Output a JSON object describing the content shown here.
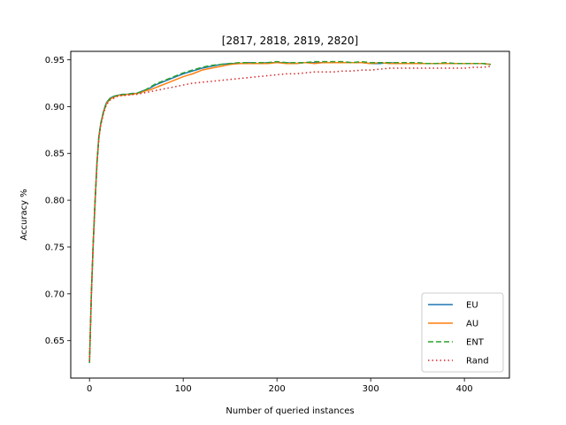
{
  "chart_data": {
    "type": "line",
    "title": "[2817, 2818, 2819, 2820]",
    "xlabel": "Number of queried instances",
    "ylabel": "Accuracy %",
    "xlim": [
      -20,
      448
    ],
    "ylim": [
      0.61,
      0.959
    ],
    "xticks": [
      0,
      100,
      200,
      300,
      400
    ],
    "yticks": [
      0.65,
      0.7,
      0.75,
      0.8,
      0.85,
      0.9,
      0.95
    ],
    "ytick_labels": [
      "0.65",
      "0.70",
      "0.75",
      "0.80",
      "0.85",
      "0.90",
      "0.95"
    ],
    "grid": false,
    "legend_position": "lower-right",
    "series": [
      {
        "name": "EU",
        "color": "#1f77b4",
        "style": "solid",
        "x": [
          0,
          2,
          4,
          6,
          8,
          10,
          12,
          15,
          18,
          22,
          26,
          30,
          35,
          40,
          45,
          50,
          55,
          60,
          65,
          70,
          75,
          80,
          85,
          90,
          95,
          100,
          110,
          120,
          130,
          140,
          150,
          160,
          170,
          180,
          190,
          200,
          210,
          220,
          230,
          240,
          250,
          260,
          270,
          280,
          290,
          300,
          310,
          320,
          330,
          340,
          350,
          360,
          370,
          380,
          390,
          400,
          410,
          420,
          428
        ],
        "y": [
          0.627,
          0.7,
          0.755,
          0.8,
          0.84,
          0.868,
          0.882,
          0.895,
          0.904,
          0.909,
          0.911,
          0.912,
          0.913,
          0.913,
          0.914,
          0.914,
          0.916,
          0.918,
          0.92,
          0.923,
          0.925,
          0.927,
          0.929,
          0.931,
          0.933,
          0.935,
          0.938,
          0.941,
          0.943,
          0.945,
          0.946,
          0.946,
          0.947,
          0.946,
          0.947,
          0.947,
          0.947,
          0.946,
          0.947,
          0.947,
          0.947,
          0.947,
          0.947,
          0.947,
          0.947,
          0.946,
          0.946,
          0.947,
          0.946,
          0.946,
          0.946,
          0.946,
          0.946,
          0.946,
          0.946,
          0.946,
          0.946,
          0.946,
          0.945
        ]
      },
      {
        "name": "AU",
        "color": "#ff7f0e",
        "style": "solid",
        "x": [
          0,
          2,
          4,
          6,
          8,
          10,
          12,
          15,
          18,
          22,
          26,
          30,
          35,
          40,
          45,
          50,
          55,
          60,
          65,
          70,
          75,
          80,
          85,
          90,
          95,
          100,
          110,
          120,
          130,
          140,
          150,
          160,
          170,
          180,
          190,
          200,
          210,
          220,
          230,
          240,
          250,
          260,
          270,
          280,
          290,
          300,
          310,
          320,
          330,
          340,
          350,
          360,
          370,
          380,
          390,
          400,
          410,
          420,
          428
        ],
        "y": [
          0.628,
          0.7,
          0.756,
          0.8,
          0.84,
          0.867,
          0.881,
          0.894,
          0.903,
          0.908,
          0.91,
          0.912,
          0.912,
          0.913,
          0.913,
          0.914,
          0.915,
          0.917,
          0.918,
          0.92,
          0.922,
          0.924,
          0.926,
          0.928,
          0.93,
          0.932,
          0.935,
          0.939,
          0.941,
          0.943,
          0.945,
          0.946,
          0.946,
          0.946,
          0.946,
          0.947,
          0.946,
          0.946,
          0.947,
          0.946,
          0.947,
          0.947,
          0.947,
          0.947,
          0.947,
          0.946,
          0.947,
          0.946,
          0.946,
          0.946,
          0.946,
          0.946,
          0.946,
          0.946,
          0.946,
          0.946,
          0.946,
          0.946,
          0.945
        ]
      },
      {
        "name": "ENT",
        "color": "#2ca02c",
        "style": "dashed",
        "x": [
          0,
          2,
          4,
          6,
          8,
          10,
          12,
          15,
          18,
          22,
          26,
          30,
          35,
          40,
          45,
          50,
          55,
          60,
          65,
          70,
          75,
          80,
          85,
          90,
          95,
          100,
          110,
          120,
          130,
          140,
          150,
          160,
          170,
          180,
          190,
          200,
          210,
          220,
          230,
          240,
          250,
          260,
          270,
          280,
          290,
          300,
          310,
          320,
          330,
          340,
          350,
          360,
          370,
          380,
          390,
          400,
          410,
          420,
          428
        ],
        "y": [
          0.626,
          0.7,
          0.755,
          0.8,
          0.84,
          0.868,
          0.882,
          0.895,
          0.904,
          0.909,
          0.911,
          0.912,
          0.913,
          0.913,
          0.914,
          0.914,
          0.916,
          0.918,
          0.921,
          0.924,
          0.926,
          0.928,
          0.93,
          0.932,
          0.934,
          0.936,
          0.939,
          0.942,
          0.944,
          0.945,
          0.946,
          0.947,
          0.947,
          0.947,
          0.947,
          0.948,
          0.947,
          0.947,
          0.947,
          0.948,
          0.948,
          0.948,
          0.948,
          0.947,
          0.948,
          0.947,
          0.947,
          0.947,
          0.947,
          0.947,
          0.947,
          0.946,
          0.946,
          0.947,
          0.946,
          0.946,
          0.946,
          0.946,
          0.945
        ]
      },
      {
        "name": "Rand",
        "color": "#d62728",
        "style": "dotted",
        "x": [
          0,
          2,
          4,
          6,
          8,
          10,
          12,
          15,
          18,
          22,
          26,
          30,
          35,
          40,
          45,
          50,
          55,
          60,
          65,
          70,
          75,
          80,
          85,
          90,
          95,
          100,
          110,
          120,
          130,
          140,
          150,
          160,
          170,
          180,
          190,
          200,
          210,
          220,
          230,
          240,
          250,
          260,
          270,
          280,
          290,
          300,
          310,
          320,
          330,
          340,
          350,
          360,
          370,
          380,
          390,
          400,
          410,
          420,
          428
        ],
        "y": [
          0.628,
          0.7,
          0.755,
          0.8,
          0.84,
          0.866,
          0.88,
          0.893,
          0.902,
          0.907,
          0.909,
          0.911,
          0.912,
          0.912,
          0.913,
          0.913,
          0.914,
          0.915,
          0.916,
          0.917,
          0.918,
          0.919,
          0.92,
          0.921,
          0.922,
          0.923,
          0.925,
          0.926,
          0.927,
          0.928,
          0.929,
          0.93,
          0.931,
          0.932,
          0.933,
          0.934,
          0.935,
          0.935,
          0.936,
          0.937,
          0.937,
          0.937,
          0.938,
          0.938,
          0.939,
          0.939,
          0.94,
          0.941,
          0.941,
          0.941,
          0.941,
          0.941,
          0.941,
          0.941,
          0.941,
          0.941,
          0.942,
          0.942,
          0.943
        ]
      }
    ]
  }
}
